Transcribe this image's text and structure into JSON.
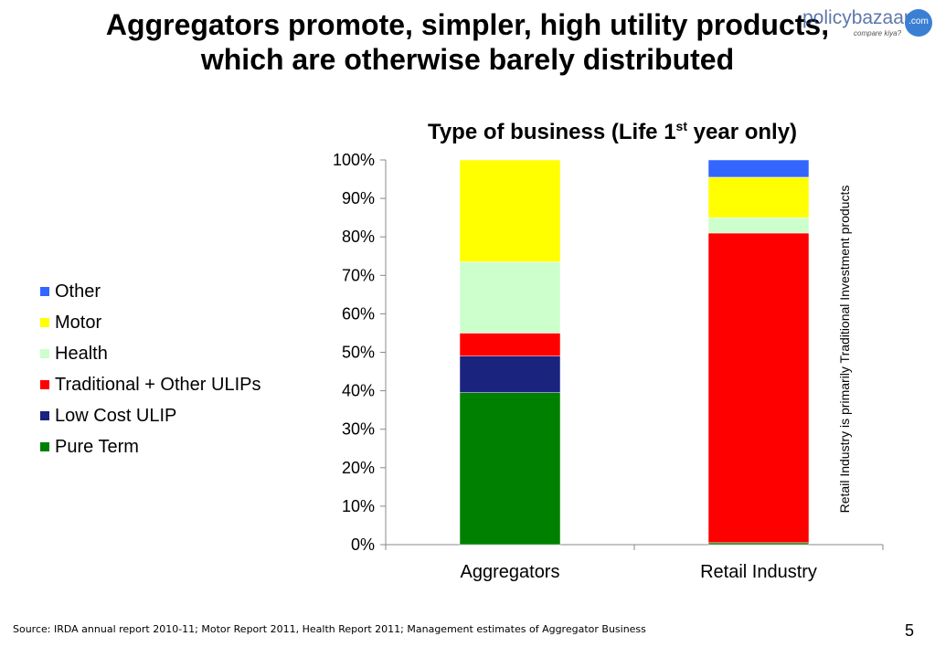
{
  "slide": {
    "title_line1": "Aggregators promote, simpler, high utility products,",
    "title_line2": "which are otherwise barely distributed",
    "logo_text": "policybazaar",
    "logo_domain": ".com",
    "logo_tagline": "compare kiya?",
    "side_note": "Retail Industry is primarily Traditional Investment products",
    "source": "Source: IRDA annual report 2010-11; Motor Report 2011, Health Report 2011; Management estimates of Aggregator Business",
    "page_number": "5"
  },
  "chart_data": {
    "type": "bar",
    "stacked": true,
    "title_main": "Type of business (Life 1",
    "title_sup": "st",
    "title_end": " year only)",
    "categories": [
      "Aggregators",
      "Retail Industry"
    ],
    "ylim": [
      0,
      100
    ],
    "y_ticks": [
      "0%",
      "10%",
      "20%",
      "30%",
      "40%",
      "50%",
      "60%",
      "70%",
      "80%",
      "90%",
      "100%"
    ],
    "legend_position": "left",
    "grid": false,
    "series": [
      {
        "name": "Pure Term",
        "color": "#008000",
        "values": [
          39.5,
          0.5
        ]
      },
      {
        "name": "Low Cost ULIP",
        "color": "#1a237e",
        "values": [
          9.5,
          0
        ]
      },
      {
        "name": "Traditional + Other ULIPs",
        "color": "#ff0000",
        "values": [
          6,
          80.5
        ]
      },
      {
        "name": "Health",
        "color": "#ccffcc",
        "values": [
          18.5,
          4
        ]
      },
      {
        "name": "Motor",
        "color": "#ffff00",
        "values": [
          26.5,
          10.5
        ]
      },
      {
        "name": "Other",
        "color": "#3366ff",
        "values": [
          0,
          4.5
        ]
      }
    ]
  }
}
